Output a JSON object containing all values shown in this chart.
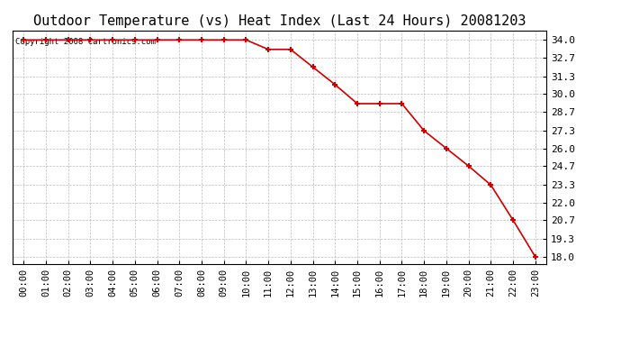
{
  "title": "Outdoor Temperature (vs) Heat Index (Last 24 Hours) 20081203",
  "copyright_text": "Copyright 2008 Cartronics.com",
  "x_labels": [
    "00:00",
    "01:00",
    "02:00",
    "03:00",
    "04:00",
    "05:00",
    "06:00",
    "07:00",
    "08:00",
    "09:00",
    "10:00",
    "11:00",
    "12:00",
    "13:00",
    "14:00",
    "15:00",
    "16:00",
    "17:00",
    "18:00",
    "19:00",
    "20:00",
    "21:00",
    "22:00",
    "23:00"
  ],
  "y_values": [
    34.0,
    34.0,
    34.0,
    34.0,
    34.0,
    34.0,
    34.0,
    34.0,
    34.0,
    34.0,
    34.0,
    33.3,
    33.3,
    32.0,
    30.7,
    29.3,
    29.3,
    29.3,
    27.3,
    26.0,
    24.7,
    23.3,
    20.7,
    18.0
  ],
  "y_ticks": [
    18.0,
    19.3,
    20.7,
    22.0,
    23.3,
    24.7,
    26.0,
    27.3,
    28.7,
    30.0,
    31.3,
    32.7,
    34.0
  ],
  "line_color": "#cc0000",
  "marker_color": "#cc0000",
  "background_color": "#ffffff",
  "grid_color": "#bbbbbb",
  "title_fontsize": 11,
  "copyright_fontsize": 6.5,
  "ylim_min": 17.5,
  "ylim_max": 34.7,
  "tick_fontsize": 7.5,
  "ytick_fontsize": 8
}
